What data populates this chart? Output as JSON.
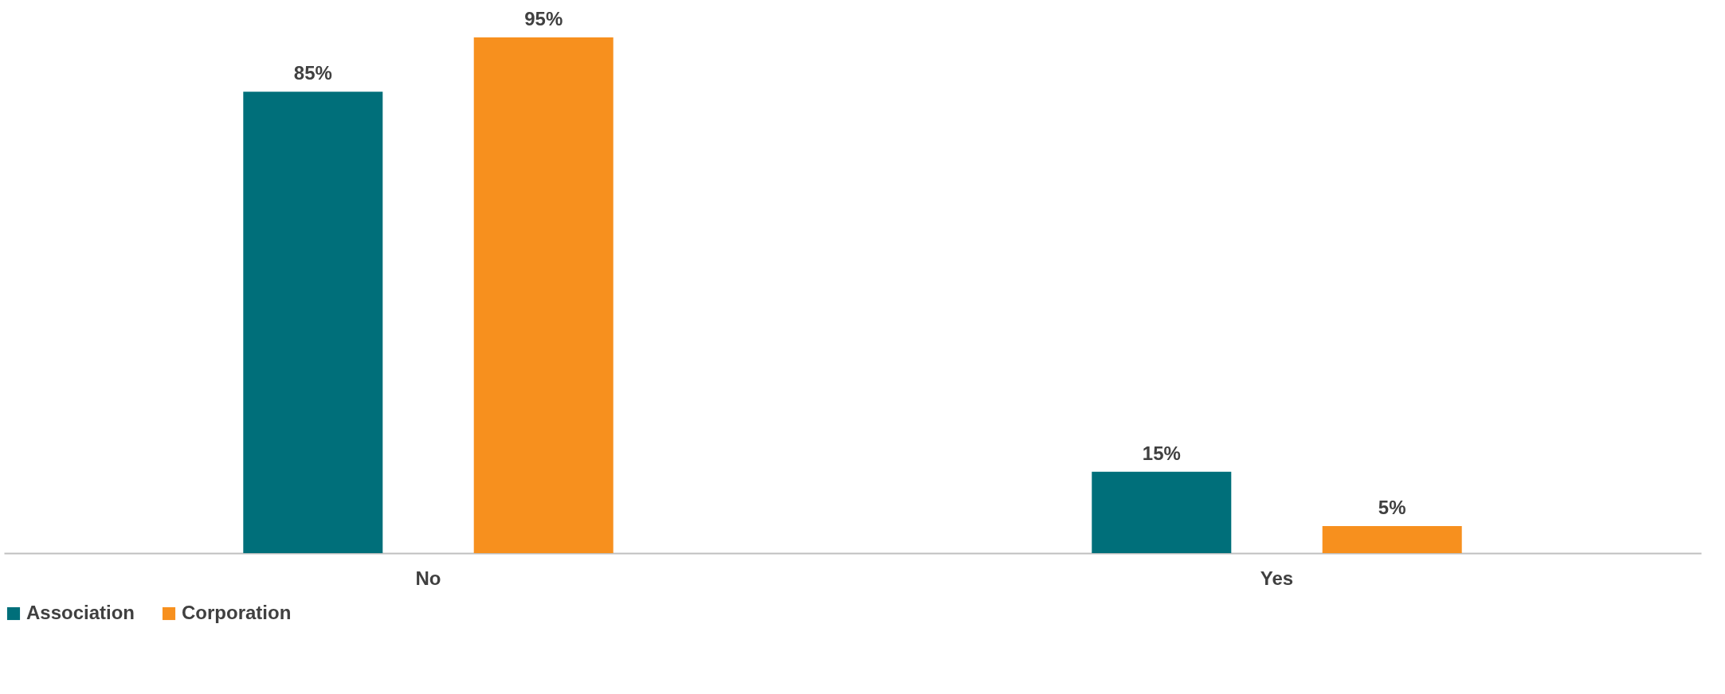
{
  "chart_data": {
    "type": "bar",
    "categories": [
      "No",
      "Yes"
    ],
    "series": [
      {
        "name": "Association",
        "color": "#006f7a",
        "values": [
          85,
          15
        ],
        "value_labels": [
          "85%",
          "15%"
        ]
      },
      {
        "name": "Corporation",
        "color": "#f7901e",
        "values": [
          95,
          5
        ],
        "value_labels": [
          "95%",
          "5%"
        ]
      }
    ],
    "grid": false,
    "legend": "bottom"
  }
}
